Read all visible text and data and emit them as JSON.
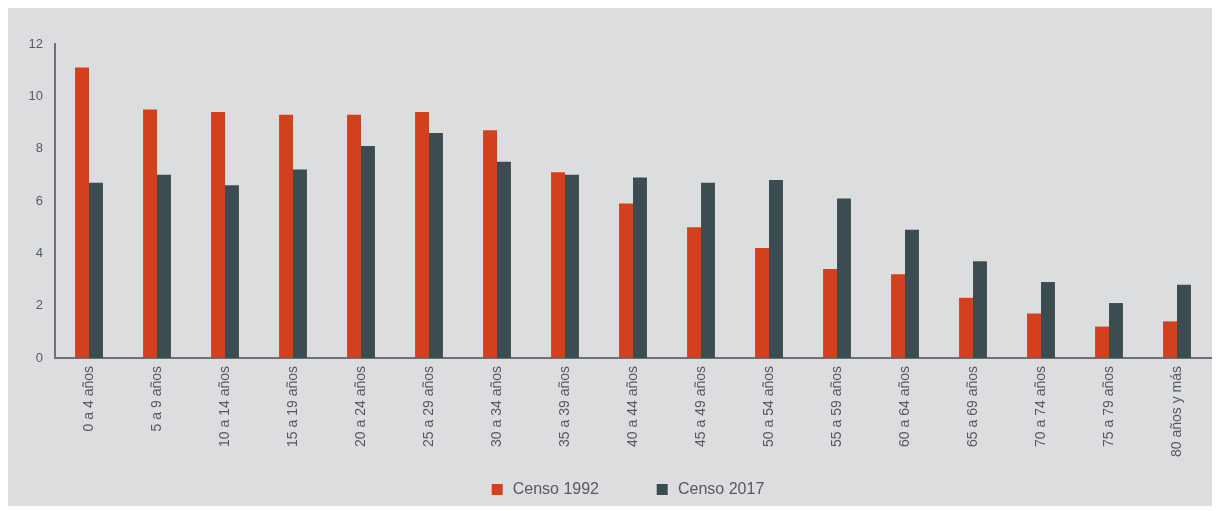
{
  "chart_data": {
    "type": "bar",
    "categories": [
      "0 a 4 años",
      "5 a 9 años",
      "10 a 14 años",
      "15 a 19 años",
      "20 a 24 años",
      "25 a 29 años",
      "30 a 34 años",
      "35 a 39 años",
      "40 a 44 años",
      "45 a 49 años",
      "50 a 54 años",
      "55 a 59 años",
      "60 a 64 años",
      "65 a 69 años",
      "70 a 74 años",
      "75 a 79 años",
      "80 años y más"
    ],
    "series": [
      {
        "name": "Censo 1992",
        "color": "#d3401e",
        "values": [
          11.1,
          9.5,
          9.4,
          9.3,
          9.3,
          9.4,
          8.7,
          7.1,
          5.9,
          5.0,
          4.2,
          3.4,
          3.2,
          2.3,
          1.7,
          1.2,
          1.4
        ]
      },
      {
        "name": "Censo 2017",
        "color": "#3c4d52",
        "values": [
          6.7,
          7.0,
          6.6,
          7.2,
          8.1,
          8.6,
          7.5,
          7.0,
          6.9,
          6.7,
          6.8,
          6.1,
          4.9,
          3.7,
          2.9,
          2.1,
          2.8
        ]
      }
    ],
    "ylim": [
      0,
      12
    ],
    "yticks": [
      0,
      2,
      4,
      6,
      8,
      10,
      12
    ],
    "grid": false,
    "legend": "bottom"
  }
}
